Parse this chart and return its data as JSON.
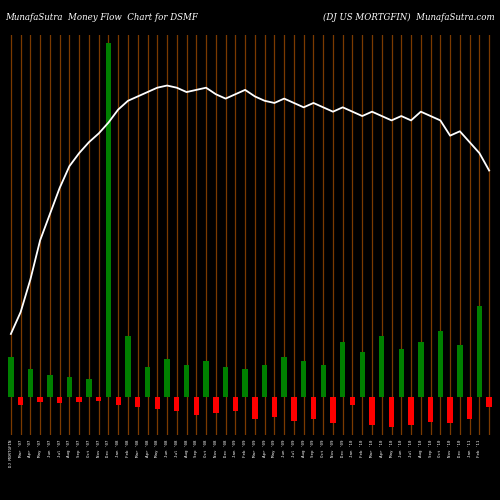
{
  "title_left": "MunafaSutra  Money Flow  Chart for DSMF",
  "title_right": "(DJ US MORTGFIN)  MunafaSutra.com",
  "bg_color": "#000000",
  "vertical_line_color": "#7B3A00",
  "line_color": "#ffffff",
  "n_bars": 50,
  "bar_values": [
    40,
    -8,
    28,
    -5,
    22,
    -6,
    20,
    -5,
    18,
    -4,
    350,
    -8,
    60,
    -10,
    30,
    -12,
    38,
    -14,
    32,
    -18,
    36,
    -16,
    30,
    -14,
    28,
    -22,
    32,
    -20,
    40,
    -24,
    36,
    -22,
    32,
    -26,
    55,
    -8,
    45,
    -28,
    60,
    -30,
    48,
    -28,
    55,
    -25,
    65,
    -26,
    52,
    -22,
    90,
    -10
  ],
  "bar_colors": [
    "green",
    "red",
    "green",
    "red",
    "green",
    "red",
    "green",
    "red",
    "green",
    "red",
    "green",
    "red",
    "green",
    "red",
    "green",
    "red",
    "green",
    "red",
    "green",
    "red",
    "green",
    "red",
    "green",
    "red",
    "green",
    "red",
    "green",
    "red",
    "green",
    "red",
    "green",
    "red",
    "green",
    "red",
    "green",
    "red",
    "green",
    "red",
    "green",
    "red",
    "green",
    "red",
    "green",
    "red",
    "green",
    "red",
    "green",
    "red",
    "green",
    "red"
  ],
  "line_values": [
    5,
    15,
    30,
    48,
    60,
    72,
    82,
    88,
    93,
    97,
    102,
    108,
    112,
    114,
    116,
    118,
    119,
    118,
    116,
    117,
    118,
    115,
    113,
    115,
    117,
    114,
    112,
    111,
    113,
    111,
    109,
    111,
    109,
    107,
    109,
    107,
    105,
    107,
    105,
    103,
    105,
    103,
    107,
    105,
    103,
    96,
    98,
    93,
    88,
    80
  ],
  "tick_labels": [
    "DJ MORTGFIN",
    "Mar '07",
    "Apr '07",
    "May '07",
    "Jun '07",
    "Jul '07",
    "Aug '07",
    "Sep '07",
    "Oct '07",
    "Nov '07",
    "Dec '07",
    "Jan '08",
    "Feb '08",
    "Mar '08",
    "Apr '08",
    "May '08",
    "Jun '08",
    "Jul '08",
    "Aug '08",
    "Sep '08",
    "Oct '08",
    "Nov '08",
    "Dec '08",
    "Jan '09",
    "Feb '09",
    "Mar '09",
    "Apr '09",
    "May '09",
    "Jun '09",
    "Jul '09",
    "Aug '09",
    "Sep '09",
    "Oct '09",
    "Nov '09",
    "Dec '09",
    "Jan '10",
    "Feb '10",
    "Mar '10",
    "Apr '10",
    "May '10",
    "Jun '10",
    "Jul '10",
    "Aug '10",
    "Sep '10",
    "Oct '10",
    "Nov '10",
    "Dec '10",
    "Jan '11",
    "Feb '11"
  ]
}
